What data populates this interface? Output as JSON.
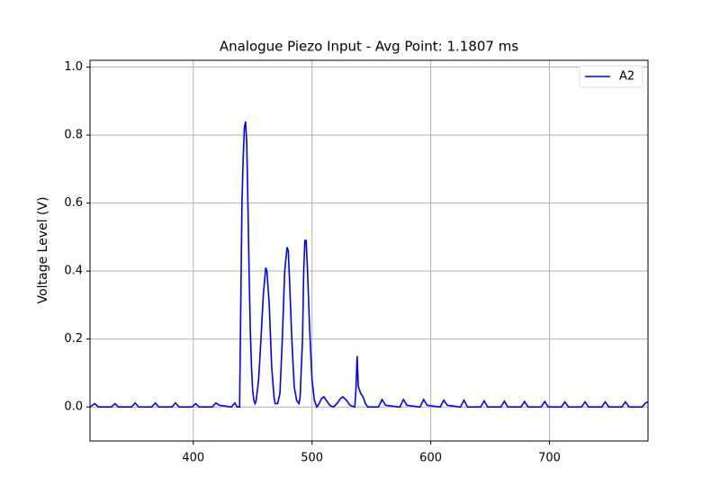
{
  "chart_data": {
    "type": "line",
    "title": "Analogue Piezo Input - Avg Point: 1.1807 ms",
    "y_label": "Voltage Level (V)",
    "x": [
      313,
      315,
      317,
      320,
      331,
      334,
      337,
      348,
      351,
      354,
      365,
      368,
      371,
      382,
      385,
      388,
      399,
      402,
      405,
      416,
      419,
      422,
      432,
      435,
      437,
      439,
      440,
      441,
      442,
      443,
      444,
      445,
      446,
      447,
      448,
      449,
      450,
      451,
      452,
      453,
      455,
      457,
      459,
      461,
      462,
      464,
      466,
      468,
      469,
      471,
      473,
      475,
      477,
      479,
      480,
      481,
      483,
      485,
      487,
      489,
      490,
      492,
      493,
      494,
      495,
      496,
      498,
      500,
      502,
      504,
      506,
      508,
      510,
      512,
      515,
      518,
      521,
      524,
      526,
      529,
      532,
      536,
      537,
      538,
      539,
      541,
      543,
      545,
      547,
      556,
      559,
      562,
      574,
      577,
      580,
      591,
      594,
      597,
      608,
      611,
      614,
      625,
      628,
      631,
      642,
      645,
      648,
      659,
      662,
      665,
      676,
      679,
      682,
      693,
      696,
      699,
      710,
      713,
      716,
      727,
      730,
      733,
      744,
      747,
      750,
      761,
      764,
      767,
      778,
      781,
      783
    ],
    "series": [
      {
        "name": "A2",
        "color": "#0000ff",
        "values": [
          0,
          0.005,
          0.01,
          0,
          0,
          0.01,
          0,
          0,
          0.012,
          0,
          0,
          0.012,
          0,
          0,
          0.012,
          0,
          0,
          0.01,
          0,
          0,
          0.012,
          0.005,
          0,
          0.012,
          0,
          0,
          0.3,
          0.6,
          0.73,
          0.82,
          0.84,
          0.78,
          0.6,
          0.4,
          0.23,
          0.12,
          0.05,
          0.02,
          0.01,
          0.02,
          0.08,
          0.2,
          0.33,
          0.41,
          0.4,
          0.3,
          0.12,
          0.03,
          0.01,
          0.01,
          0.04,
          0.2,
          0.4,
          0.47,
          0.46,
          0.38,
          0.2,
          0.06,
          0.02,
          0.01,
          0.03,
          0.2,
          0.4,
          0.49,
          0.49,
          0.42,
          0.23,
          0.08,
          0.02,
          0,
          0.01,
          0.025,
          0.03,
          0.02,
          0.005,
          0,
          0.01,
          0.025,
          0.03,
          0.02,
          0.005,
          0,
          0.05,
          0.15,
          0.06,
          0.04,
          0.03,
          0.01,
          0,
          0,
          0.022,
          0.005,
          0,
          0.022,
          0.005,
          0,
          0.022,
          0.005,
          0,
          0.02,
          0.005,
          0,
          0.02,
          0,
          0,
          0.018,
          0,
          0,
          0.017,
          0,
          0,
          0.016,
          0,
          0,
          0.016,
          0,
          0,
          0.015,
          0,
          0,
          0.015,
          0,
          0,
          0.015,
          0,
          0,
          0.015,
          0,
          0,
          0.012,
          0.015
        ]
      }
    ],
    "xlim": [
      313,
      783
    ],
    "ylim": [
      -0.1,
      1.02
    ],
    "xticks": [
      400,
      500,
      600,
      700
    ],
    "yticks": [
      {
        "value": 0,
        "label": "0.0"
      },
      {
        "value": 0.2,
        "label": "0.2"
      },
      {
        "value": 0.4,
        "label": "0.4"
      },
      {
        "value": 0.6,
        "label": "0.6"
      },
      {
        "value": 0.8,
        "label": "0.8"
      },
      {
        "value": 1.0,
        "label": "1.0"
      }
    ],
    "grid": true,
    "legend": "upper right"
  }
}
